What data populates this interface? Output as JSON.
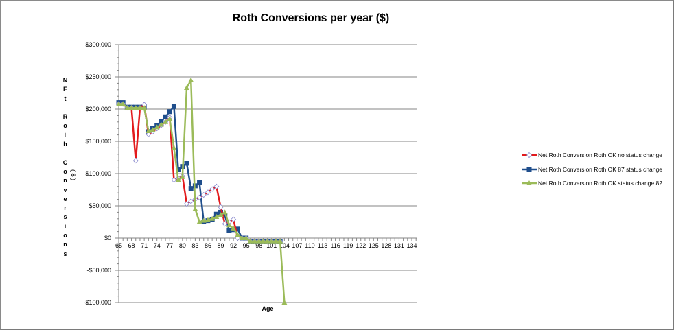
{
  "chart_data": {
    "type": "line",
    "title": "Roth Conversions per year ($)",
    "xlabel": "Age",
    "ylabel": "NEt Roth Conversions",
    "ylabel_secondary": "($)",
    "ylim": [
      -100000,
      300000
    ],
    "yticks": [
      "$300,000",
      "$250,000",
      "$200,000",
      "$150,000",
      "$100,000",
      "$50,000",
      "$0",
      "-$50,000",
      "-$100,000"
    ],
    "ytick_values": [
      300000,
      250000,
      200000,
      150000,
      100000,
      50000,
      0,
      -50000,
      -100000
    ],
    "xlim": [
      65,
      134
    ],
    "xticks": [
      "65",
      "68",
      "71",
      "74",
      "77",
      "80",
      "83",
      "86",
      "89",
      "92",
      "95",
      "98",
      "101",
      "104",
      "107",
      "110",
      "113",
      "116",
      "119",
      "122",
      "125",
      "128",
      "131",
      "134"
    ],
    "grid": "horizontal major",
    "legend_position": "right",
    "x": [
      65,
      66,
      67,
      68,
      69,
      70,
      71,
      72,
      73,
      74,
      75,
      76,
      77,
      78,
      79,
      80,
      81,
      82,
      83,
      84,
      85,
      86,
      87,
      88,
      89,
      90,
      91,
      92,
      93,
      94,
      95,
      96,
      97,
      98,
      99,
      100,
      101,
      102,
      103,
      104
    ],
    "series": [
      {
        "name": "Net Roth Conversion Roth OK no status change",
        "color": "#e31a1c",
        "marker": "diamond-open",
        "values": [
          208000,
          208000,
          202000,
          202000,
          120000,
          202000,
          207000,
          161000,
          165000,
          170000,
          175000,
          180000,
          187000,
          90000,
          93000,
          96000,
          53000,
          57000,
          60000,
          63000,
          67000,
          71000,
          76000,
          80000,
          48000,
          22000,
          25000,
          29000,
          0,
          0,
          0,
          -5000,
          -5000,
          -5000,
          -5000,
          -5000,
          -5000,
          -5000,
          -5000,
          null
        ]
      },
      {
        "name": "Net Roth Conversion Roth OK 87 status change",
        "color": "#1f4e8c",
        "marker": "square",
        "values": [
          210000,
          210000,
          203000,
          203000,
          203000,
          203000,
          203000,
          165000,
          170000,
          175000,
          181000,
          188000,
          196000,
          204000,
          106000,
          111000,
          116000,
          77000,
          81000,
          86000,
          25000,
          27000,
          29000,
          37000,
          40000,
          35000,
          12000,
          13000,
          14000,
          0,
          0,
          -5000,
          -5000,
          -5000,
          -5000,
          -5000,
          -5000,
          -5000,
          -5000,
          null
        ]
      },
      {
        "name": "Net Roth Conversion Roth OK status change 82",
        "color": "#9bbb59",
        "marker": "triangle",
        "values": [
          208000,
          208000,
          202000,
          202000,
          202000,
          202000,
          202000,
          166000,
          168000,
          172000,
          176000,
          180000,
          185000,
          140000,
          90000,
          95000,
          233000,
          245000,
          45000,
          25000,
          27000,
          28000,
          30000,
          33000,
          36000,
          40000,
          20000,
          15000,
          5000,
          0,
          0,
          -5000,
          -5000,
          -5000,
          -5000,
          -5000,
          -5000,
          -5000,
          -5000,
          -100000
        ]
      }
    ]
  },
  "legend": {
    "items": [
      {
        "label": "Net Roth Conversion Roth OK no status change"
      },
      {
        "label": "Net Roth Conversion Roth OK 87 status change"
      },
      {
        "label": "Net Roth Conversion Roth OK status change 82"
      }
    ]
  },
  "axis": {
    "x_title": "Age",
    "y_title_letters": [
      "N",
      "E",
      "t",
      "",
      "R",
      "o",
      "t",
      "h",
      "",
      "C",
      "o",
      "n",
      "v",
      "e",
      "r",
      "s",
      "i",
      "o",
      "n",
      "s"
    ],
    "y_title_secondary": "( $ )"
  }
}
